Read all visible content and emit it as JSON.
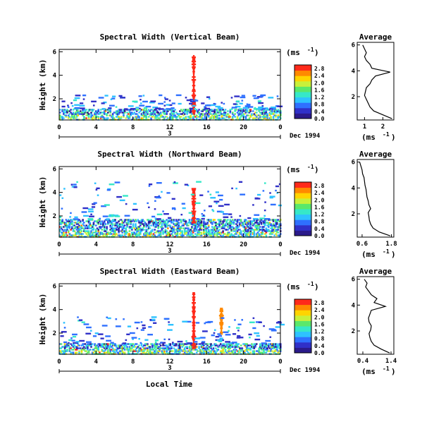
{
  "figure": {
    "date_label": "Dec 1994",
    "day_label": "3",
    "xlabel": "Local Time",
    "ylabel": "Height (km)",
    "units_label": "(ms",
    "units_exp": "-1",
    "avg_title": "Average",
    "avg_xlabel": "(ms",
    "avg_xlabel_exp": "-1"
  },
  "colorscale": [
    "#2b1a8a",
    "#3030c8",
    "#2f70ff",
    "#2ec2ff",
    "#36e8c8",
    "#5be86a",
    "#c9f03a",
    "#ffd400",
    "#ff8a00",
    "#ff2a1a"
  ],
  "chart_data": [
    {
      "type": "heatmap",
      "title": "Spectral Width (Vertical Beam)",
      "x_ticks": [
        "0",
        "4",
        "8",
        "12",
        "16",
        "20",
        "0"
      ],
      "xlim": [
        0,
        24
      ],
      "y_ticks": [
        "2",
        "4",
        "6"
      ],
      "ylim": [
        0.2,
        6.2
      ],
      "colorbar_ticks": [
        "0.0",
        "0.4",
        "0.8",
        "1.2",
        "1.6",
        "2.0",
        "2.4",
        "2.8"
      ],
      "colorbar_range": [
        0,
        3.0
      ],
      "features": [
        {
          "name": "boundary layer",
          "x_range": [
            0,
            24
          ],
          "height_km": [
            0.3,
            1.2
          ]
        },
        {
          "name": "spike",
          "x": 14.6,
          "height_km": [
            0.8,
            5.8
          ],
          "value": 2.9
        },
        {
          "name": "scattered echoes",
          "x_range": [
            0,
            24
          ],
          "height_km": [
            1.2,
            2.4
          ]
        }
      ],
      "average_profile": {
        "xlim": [
          0.6,
          2.6
        ],
        "x_ticks": [
          "1",
          "2"
        ],
        "y_ticks": [
          "2",
          "4",
          "6"
        ],
        "ylim": [
          0.2,
          6.2
        ],
        "height_km": [
          0.3,
          0.6,
          0.9,
          1.2,
          1.5,
          1.8,
          2.1,
          2.4,
          2.7,
          3.0,
          3.3,
          3.6,
          3.9,
          4.2,
          4.5,
          4.8,
          5.1,
          5.4,
          5.7,
          6.0
        ],
        "values": [
          2.5,
          2.0,
          1.5,
          1.3,
          1.2,
          1.1,
          1.0,
          1.05,
          1.1,
          1.3,
          1.4,
          1.6,
          2.4,
          1.4,
          1.3,
          1.1,
          1.0,
          1.1,
          1.0,
          0.9
        ]
      }
    },
    {
      "type": "heatmap",
      "title": "Spectral Width (Northward Beam)",
      "x_ticks": [
        "0",
        "4",
        "8",
        "12",
        "16",
        "20",
        "0"
      ],
      "xlim": [
        0,
        24
      ],
      "y_ticks": [
        "2",
        "4",
        "6"
      ],
      "ylim": [
        0.2,
        6.2
      ],
      "colorbar_ticks": [
        "0.0",
        "0.4",
        "0.8",
        "1.2",
        "1.6",
        "2.0",
        "2.4",
        "2.8"
      ],
      "colorbar_range": [
        0,
        3.0
      ],
      "features": [
        {
          "name": "boundary layer",
          "x_range": [
            0,
            24
          ],
          "height_km": [
            0.3,
            1.8
          ]
        },
        {
          "name": "spike",
          "x": 14.6,
          "height_km": [
            1.5,
            4.5
          ],
          "value": 2.9
        },
        {
          "name": "scattered echoes",
          "x_range": [
            0,
            24
          ],
          "height_km": [
            1.8,
            5.0
          ]
        }
      ],
      "average_profile": {
        "xlim": [
          0.4,
          1.9
        ],
        "x_ticks": [
          "0.6",
          "1.8"
        ],
        "y_ticks": [
          "2",
          "4",
          "6"
        ],
        "ylim": [
          0.2,
          6.2
        ],
        "height_km": [
          0.3,
          0.6,
          0.9,
          1.2,
          1.5,
          1.8,
          2.1,
          2.4,
          2.7,
          3.0,
          3.3,
          3.6,
          3.9,
          4.2,
          4.5,
          4.8,
          5.1,
          5.4,
          5.7,
          6.0
        ],
        "values": [
          1.75,
          1.3,
          1.05,
          0.95,
          0.9,
          0.88,
          0.85,
          0.95,
          0.88,
          0.85,
          0.8,
          0.78,
          0.76,
          0.72,
          0.7,
          0.68,
          0.62,
          0.6,
          0.55,
          0.5
        ]
      }
    },
    {
      "type": "heatmap",
      "title": "Spectral Width (Eastward Beam)",
      "x_ticks": [
        "0",
        "4",
        "8",
        "12",
        "16",
        "20",
        "0"
      ],
      "xlim": [
        0,
        24
      ],
      "y_ticks": [
        "2",
        "4",
        "6"
      ],
      "ylim": [
        0.2,
        6.2
      ],
      "colorbar_ticks": [
        "0.0",
        "0.4",
        "0.8",
        "1.2",
        "1.6",
        "2.0",
        "2.4",
        "2.8"
      ],
      "colorbar_range": [
        0,
        3.0
      ],
      "features": [
        {
          "name": "boundary layer",
          "x_range": [
            0,
            24
          ],
          "height_km": [
            0.3,
            1.2
          ]
        },
        {
          "name": "spike",
          "x": 14.6,
          "height_km": [
            0.8,
            5.6
          ],
          "value": 2.9
        },
        {
          "name": "secondary spike",
          "x": 17.6,
          "height_km": [
            2.0,
            4.2
          ],
          "value": 2.5
        },
        {
          "name": "scattered echoes",
          "x_range": [
            0,
            24
          ],
          "height_km": [
            1.2,
            3.5
          ]
        }
      ],
      "average_profile": {
        "xlim": [
          0.2,
          1.5
        ],
        "x_ticks": [
          "0.4",
          "1.4"
        ],
        "y_ticks": [
          "2",
          "4",
          "6"
        ],
        "ylim": [
          0.2,
          6.2
        ],
        "height_km": [
          0.3,
          0.6,
          0.9,
          1.2,
          1.5,
          1.8,
          2.1,
          2.4,
          2.7,
          3.0,
          3.3,
          3.6,
          3.9,
          4.2,
          4.5,
          4.8,
          5.1,
          5.4,
          5.7,
          6.0
        ],
        "values": [
          1.35,
          1.05,
          0.8,
          0.7,
          0.65,
          0.62,
          0.68,
          0.7,
          0.62,
          0.6,
          0.65,
          0.7,
          1.2,
          0.8,
          0.9,
          0.7,
          0.6,
          0.5,
          0.55,
          0.45
        ]
      }
    }
  ]
}
